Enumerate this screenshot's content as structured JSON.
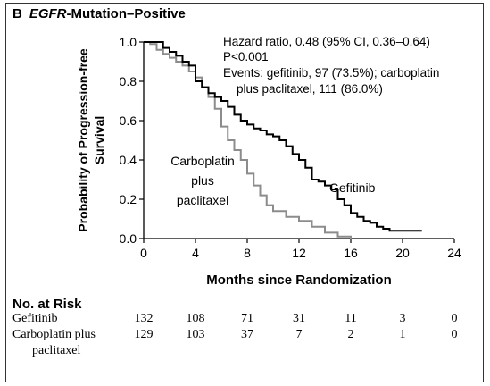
{
  "panel": {
    "letter": "B",
    "title_italic": "EGFR",
    "title_rest": "-Mutation–Positive"
  },
  "chart_data": {
    "type": "line",
    "title": "EGFR-Mutation–Positive",
    "xlabel": "Months since Randomization",
    "ylabel_lines": [
      "Probability of Progression-free",
      "Survival"
    ],
    "xlim": [
      0,
      24
    ],
    "ylim": [
      0,
      1.0
    ],
    "xticks": [
      0,
      4,
      8,
      12,
      16,
      20,
      24
    ],
    "xtick_labels": [
      "0",
      "4",
      "8",
      "12",
      "16",
      "20",
      "24"
    ],
    "yticks": [
      0,
      0.2,
      0.4,
      0.6,
      0.8,
      1.0
    ],
    "ytick_labels": [
      "0.0",
      "0.2",
      "0.4",
      "0.6",
      "0.8",
      "1.0"
    ],
    "grid": false,
    "annotations": {
      "stats": [
        "Hazard ratio, 0.48 (95% CI, 0.36–0.64)",
        "P<0.001",
        "Events: gefitinib, 97 (73.5%); carboplatin",
        "plus paclitaxel, 111 (86.0%)"
      ],
      "gefitinib_label": "Gefitinib",
      "carbo_label": [
        "Carboplatin",
        "plus",
        "paclitaxel"
      ]
    },
    "series": [
      {
        "name": "Gefitinib",
        "color": "#000000",
        "x": [
          0,
          1.0,
          1.5,
          2.0,
          2.5,
          3.0,
          3.5,
          4.0,
          4.5,
          5.0,
          5.5,
          6.0,
          6.5,
          7.0,
          7.5,
          8.0,
          8.5,
          9.0,
          9.5,
          10.0,
          10.5,
          11.0,
          11.5,
          12.0,
          12.5,
          13.0,
          13.5,
          14.0,
          14.5,
          15.0,
          15.5,
          16.0,
          16.5,
          17.0,
          17.5,
          18.0,
          18.5,
          19.0,
          20.0,
          21.5
        ],
        "y": [
          1.0,
          1.0,
          0.97,
          0.95,
          0.93,
          0.9,
          0.88,
          0.8,
          0.77,
          0.74,
          0.72,
          0.7,
          0.67,
          0.63,
          0.6,
          0.58,
          0.56,
          0.55,
          0.53,
          0.52,
          0.5,
          0.47,
          0.43,
          0.4,
          0.36,
          0.3,
          0.29,
          0.27,
          0.25,
          0.2,
          0.17,
          0.13,
          0.11,
          0.09,
          0.08,
          0.06,
          0.05,
          0.04,
          0.04,
          0.04
        ]
      },
      {
        "name": "Carboplatin plus paclitaxel",
        "color": "#8c8c8c",
        "x": [
          0,
          0.5,
          1.0,
          1.5,
          2.0,
          2.5,
          3.0,
          3.5,
          4.0,
          4.5,
          5.0,
          5.5,
          6.0,
          6.5,
          7.0,
          7.5,
          8.0,
          8.5,
          9.0,
          9.5,
          10.0,
          11.0,
          12.0,
          13.0,
          14.0,
          15.0,
          16.0
        ],
        "y": [
          1.0,
          0.99,
          0.96,
          0.94,
          0.92,
          0.9,
          0.88,
          0.85,
          0.82,
          0.77,
          0.72,
          0.66,
          0.57,
          0.5,
          0.45,
          0.4,
          0.33,
          0.27,
          0.22,
          0.17,
          0.14,
          0.11,
          0.09,
          0.06,
          0.03,
          0.01,
          0.0
        ]
      }
    ]
  },
  "risk_table": {
    "title": "No. at Risk",
    "times": [
      0,
      4,
      8,
      12,
      16,
      20,
      24
    ],
    "rows": [
      {
        "label": "Gefitinib",
        "counts": [
          "132",
          "108",
          "71",
          "31",
          "11",
          "3",
          "0"
        ]
      },
      {
        "label": "Carboplatin plus",
        "label2": "paclitaxel",
        "counts": [
          "129",
          "103",
          "37",
          "7",
          "2",
          "1",
          "0"
        ]
      }
    ]
  }
}
